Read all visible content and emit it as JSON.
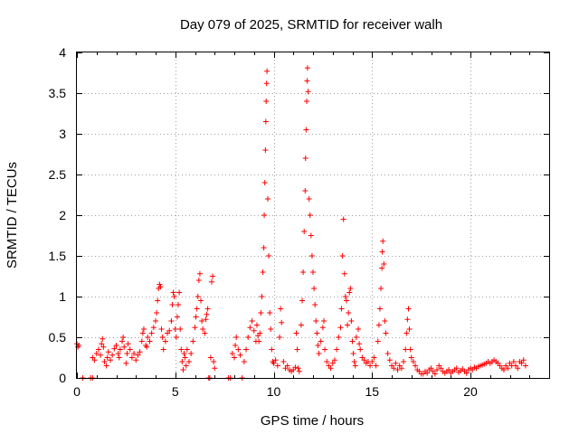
{
  "chart_data": {
    "type": "scatter",
    "title": "Day 079 of 2025, SRMTID for receiver walh",
    "xlabel": "GPS time / hours",
    "ylabel": "SRMTID / TECUs",
    "xlim": [
      0,
      24
    ],
    "ylim": [
      0,
      4
    ],
    "xticks": [
      0,
      5,
      10,
      15,
      20
    ],
    "yticks": [
      0,
      0.5,
      1,
      1.5,
      2,
      2.5,
      3,
      3.5,
      4
    ],
    "xtick_labels": [
      "0",
      "5",
      "10",
      "15",
      "20"
    ],
    "ytick_labels": [
      "0",
      "0.5",
      "1",
      "1.5",
      "2",
      "2.5",
      "3",
      "3.5",
      "4"
    ],
    "grid": true,
    "marker": "+",
    "color": "#ff0000",
    "series": [
      {
        "name": "SRMTID",
        "points": [
          [
            0.0,
            0.42
          ],
          [
            0.05,
            0.38
          ],
          [
            0.1,
            0.4
          ],
          [
            0.3,
            0.0
          ],
          [
            0.7,
            0.0
          ],
          [
            0.8,
            0.0
          ],
          [
            0.8,
            0.25
          ],
          [
            0.9,
            0.22
          ],
          [
            1.0,
            0.3
          ],
          [
            1.1,
            0.35
          ],
          [
            1.2,
            0.28
          ],
          [
            1.25,
            0.42
          ],
          [
            1.3,
            0.48
          ],
          [
            1.35,
            0.38
          ],
          [
            1.4,
            0.2
          ],
          [
            1.5,
            0.15
          ],
          [
            1.55,
            0.25
          ],
          [
            1.6,
            0.32
          ],
          [
            1.7,
            0.22
          ],
          [
            1.8,
            0.28
          ],
          [
            1.9,
            0.36
          ],
          [
            2.0,
            0.4
          ],
          [
            2.1,
            0.3
          ],
          [
            2.15,
            0.25
          ],
          [
            2.2,
            0.35
          ],
          [
            2.3,
            0.45
          ],
          [
            2.35,
            0.5
          ],
          [
            2.4,
            0.38
          ],
          [
            2.5,
            0.18
          ],
          [
            2.55,
            0.3
          ],
          [
            2.6,
            0.42
          ],
          [
            2.7,
            0.35
          ],
          [
            2.8,
            0.25
          ],
          [
            2.9,
            0.3
          ],
          [
            3.0,
            0.22
          ],
          [
            3.1,
            0.28
          ],
          [
            3.2,
            0.32
          ],
          [
            3.3,
            0.45
          ],
          [
            3.35,
            0.55
          ],
          [
            3.4,
            0.6
          ],
          [
            3.5,
            0.4
          ],
          [
            3.55,
            0.38
          ],
          [
            3.6,
            0.5
          ],
          [
            3.7,
            0.45
          ],
          [
            3.8,
            0.55
          ],
          [
            3.9,
            0.62
          ],
          [
            4.0,
            0.7
          ],
          [
            4.05,
            0.8
          ],
          [
            4.1,
            0.95
          ],
          [
            4.15,
            1.1
          ],
          [
            4.2,
            1.15
          ],
          [
            4.25,
            1.12
          ],
          [
            4.3,
            0.6
          ],
          [
            4.35,
            0.5
          ],
          [
            4.4,
            0.35
          ],
          [
            4.5,
            0.45
          ],
          [
            4.6,
            0.55
          ],
          [
            4.7,
            0.58
          ],
          [
            4.8,
            0.7
          ],
          [
            4.85,
            0.9
          ],
          [
            4.9,
            1.05
          ],
          [
            4.95,
            1.0
          ],
          [
            5.0,
            0.6
          ],
          [
            5.05,
            0.5
          ],
          [
            5.1,
            0.75
          ],
          [
            5.15,
            0.9
          ],
          [
            5.2,
            1.05
          ],
          [
            5.25,
            0.6
          ],
          [
            5.3,
            0.35
          ],
          [
            5.35,
            0.2
          ],
          [
            5.4,
            0.1
          ],
          [
            5.45,
            0.3
          ],
          [
            5.5,
            0.25
          ],
          [
            5.55,
            0.15
          ],
          [
            5.6,
            0.35
          ],
          [
            5.7,
            0.2
          ],
          [
            5.8,
            0.3
          ],
          [
            5.9,
            0.45
          ],
          [
            6.0,
            0.62
          ],
          [
            6.05,
            0.75
          ],
          [
            6.1,
            0.85
          ],
          [
            6.15,
            1.0
          ],
          [
            6.2,
            1.2
          ],
          [
            6.25,
            1.28
          ],
          [
            6.3,
            0.95
          ],
          [
            6.35,
            0.7
          ],
          [
            6.4,
            0.6
          ],
          [
            6.5,
            0.55
          ],
          [
            6.55,
            0.72
          ],
          [
            6.6,
            0.78
          ],
          [
            6.65,
            0.85
          ],
          [
            6.7,
            0.0
          ],
          [
            6.75,
            0.0
          ],
          [
            6.8,
            0.25
          ],
          [
            6.85,
            1.18
          ],
          [
            6.9,
            1.25
          ],
          [
            6.95,
            0.2
          ],
          [
            7.0,
            0.12
          ],
          [
            7.7,
            0.0
          ],
          [
            7.8,
            0.0
          ],
          [
            7.9,
            0.3
          ],
          [
            8.0,
            0.25
          ],
          [
            8.05,
            0.4
          ],
          [
            8.1,
            0.5
          ],
          [
            8.2,
            0.35
          ],
          [
            8.3,
            0.28
          ],
          [
            8.4,
            0.0
          ],
          [
            8.5,
            0.2
          ],
          [
            8.6,
            0.35
          ],
          [
            8.7,
            0.5
          ],
          [
            8.8,
            0.62
          ],
          [
            8.9,
            0.7
          ],
          [
            9.0,
            0.58
          ],
          [
            9.1,
            0.45
          ],
          [
            9.15,
            0.65
          ],
          [
            9.2,
            0.52
          ],
          [
            9.25,
            0.45
          ],
          [
            9.3,
            0.55
          ],
          [
            9.35,
            0.8
          ],
          [
            9.4,
            1.0
          ],
          [
            9.45,
            1.3
          ],
          [
            9.5,
            1.6
          ],
          [
            9.52,
            2.0
          ],
          [
            9.55,
            2.4
          ],
          [
            9.58,
            2.8
          ],
          [
            9.6,
            3.15
          ],
          [
            9.62,
            3.4
          ],
          [
            9.64,
            3.62
          ],
          [
            9.66,
            3.77
          ],
          [
            9.7,
            2.2
          ],
          [
            9.75,
            1.5
          ],
          [
            9.8,
            0.8
          ],
          [
            9.85,
            0.6
          ],
          [
            9.9,
            0.35
          ],
          [
            9.95,
            0.2
          ],
          [
            10.0,
            0.18
          ],
          [
            10.1,
            0.22
          ],
          [
            10.2,
            0.15
          ],
          [
            10.3,
            0.5
          ],
          [
            10.35,
            0.85
          ],
          [
            10.4,
            0.68
          ],
          [
            10.5,
            0.2
          ],
          [
            10.6,
            0.12
          ],
          [
            10.7,
            0.15
          ],
          [
            10.8,
            0.1
          ],
          [
            10.9,
            0.08
          ],
          [
            11.0,
            0.1
          ],
          [
            11.1,
            0.13
          ],
          [
            11.15,
            0.55
          ],
          [
            11.2,
            0.35
          ],
          [
            11.25,
            0.12
          ],
          [
            11.3,
            0.08
          ],
          [
            11.4,
            0.65
          ],
          [
            11.45,
            0.95
          ],
          [
            11.5,
            1.3
          ],
          [
            11.55,
            1.8
          ],
          [
            11.6,
            2.3
          ],
          [
            11.62,
            2.7
          ],
          [
            11.65,
            3.05
          ],
          [
            11.68,
            3.4
          ],
          [
            11.7,
            3.65
          ],
          [
            11.72,
            3.81
          ],
          [
            11.75,
            3.52
          ],
          [
            11.8,
            2.2
          ],
          [
            11.85,
            2.0
          ],
          [
            11.9,
            1.75
          ],
          [
            11.95,
            1.5
          ],
          [
            12.0,
            1.3
          ],
          [
            12.05,
            1.1
          ],
          [
            12.1,
            0.9
          ],
          [
            12.15,
            0.7
          ],
          [
            12.2,
            0.55
          ],
          [
            12.25,
            0.4
          ],
          [
            12.3,
            0.3
          ],
          [
            12.4,
            0.45
          ],
          [
            12.5,
            0.62
          ],
          [
            12.55,
            0.7
          ],
          [
            12.6,
            0.35
          ],
          [
            12.7,
            0.2
          ],
          [
            12.8,
            0.15
          ],
          [
            12.9,
            0.12
          ],
          [
            13.0,
            0.18
          ],
          [
            13.1,
            0.22
          ],
          [
            13.2,
            0.35
          ],
          [
            13.3,
            0.5
          ],
          [
            13.4,
            0.62
          ],
          [
            13.45,
            0.85
          ],
          [
            13.5,
            1.5
          ],
          [
            13.55,
            1.95
          ],
          [
            13.6,
            1.28
          ],
          [
            13.65,
            1.0
          ],
          [
            13.7,
            0.95
          ],
          [
            13.75,
            0.65
          ],
          [
            13.8,
            0.8
          ],
          [
            13.85,
            1.05
          ],
          [
            13.9,
            1.1
          ],
          [
            13.95,
            0.7
          ],
          [
            14.0,
            0.45
          ],
          [
            14.05,
            0.3
          ],
          [
            14.1,
            0.2
          ],
          [
            14.15,
            0.15
          ],
          [
            14.2,
            0.5
          ],
          [
            14.3,
            0.6
          ],
          [
            14.35,
            0.42
          ],
          [
            14.4,
            0.35
          ],
          [
            14.5,
            0.25
          ],
          [
            14.6,
            0.22
          ],
          [
            14.7,
            0.18
          ],
          [
            14.8,
            0.2
          ],
          [
            14.9,
            0.15
          ],
          [
            15.0,
            0.2
          ],
          [
            15.1,
            0.25
          ],
          [
            15.2,
            0.15
          ],
          [
            15.3,
            0.45
          ],
          [
            15.35,
            0.65
          ],
          [
            15.4,
            0.85
          ],
          [
            15.45,
            1.1
          ],
          [
            15.5,
            1.35
          ],
          [
            15.52,
            1.55
          ],
          [
            15.55,
            1.68
          ],
          [
            15.6,
            1.4
          ],
          [
            15.65,
            0.7
          ],
          [
            15.7,
            0.55
          ],
          [
            15.8,
            0.3
          ],
          [
            15.9,
            0.22
          ],
          [
            16.0,
            0.15
          ],
          [
            16.1,
            0.12
          ],
          [
            16.2,
            0.18
          ],
          [
            16.3,
            0.1
          ],
          [
            16.4,
            0.15
          ],
          [
            16.5,
            0.12
          ],
          [
            16.6,
            0.2
          ],
          [
            16.7,
            0.35
          ],
          [
            16.75,
            0.55
          ],
          [
            16.8,
            0.72
          ],
          [
            16.85,
            0.85
          ],
          [
            16.9,
            0.6
          ],
          [
            16.95,
            0.35
          ],
          [
            17.0,
            0.25
          ],
          [
            17.1,
            0.2
          ],
          [
            17.2,
            0.15
          ],
          [
            17.3,
            0.1
          ],
          [
            17.4,
            0.08
          ],
          [
            17.5,
            0.05
          ],
          [
            17.6,
            0.05
          ],
          [
            17.7,
            0.08
          ],
          [
            17.8,
            0.06
          ],
          [
            17.9,
            0.1
          ],
          [
            18.0,
            0.12
          ],
          [
            18.1,
            0.08
          ],
          [
            18.2,
            0.05
          ],
          [
            18.3,
            0.1
          ],
          [
            18.4,
            0.15
          ],
          [
            18.5,
            0.12
          ],
          [
            18.6,
            0.08
          ],
          [
            18.7,
            0.06
          ],
          [
            18.8,
            0.08
          ],
          [
            18.9,
            0.1
          ],
          [
            19.0,
            0.06
          ],
          [
            19.1,
            0.08
          ],
          [
            19.2,
            0.1
          ],
          [
            19.3,
            0.12
          ],
          [
            19.4,
            0.07
          ],
          [
            19.5,
            0.09
          ],
          [
            19.6,
            0.11
          ],
          [
            19.7,
            0.08
          ],
          [
            19.8,
            0.06
          ],
          [
            19.9,
            0.1
          ],
          [
            20.0,
            0.12
          ],
          [
            20.1,
            0.1
          ],
          [
            20.2,
            0.13
          ],
          [
            20.3,
            0.12
          ],
          [
            20.4,
            0.14
          ],
          [
            20.5,
            0.15
          ],
          [
            20.6,
            0.16
          ],
          [
            20.7,
            0.17
          ],
          [
            20.8,
            0.18
          ],
          [
            20.9,
            0.2
          ],
          [
            21.0,
            0.18
          ],
          [
            21.1,
            0.2
          ],
          [
            21.2,
            0.22
          ],
          [
            21.3,
            0.2
          ],
          [
            21.4,
            0.18
          ],
          [
            21.5,
            0.15
          ],
          [
            21.6,
            0.12
          ],
          [
            21.7,
            0.1
          ],
          [
            21.8,
            0.15
          ],
          [
            21.9,
            0.12
          ],
          [
            22.0,
            0.18
          ],
          [
            22.1,
            0.15
          ],
          [
            22.2,
            0.2
          ],
          [
            22.3,
            0.15
          ],
          [
            22.4,
            0.12
          ],
          [
            22.5,
            0.2
          ],
          [
            22.6,
            0.18
          ],
          [
            22.7,
            0.22
          ],
          [
            22.8,
            0.15
          ]
        ]
      }
    ]
  }
}
